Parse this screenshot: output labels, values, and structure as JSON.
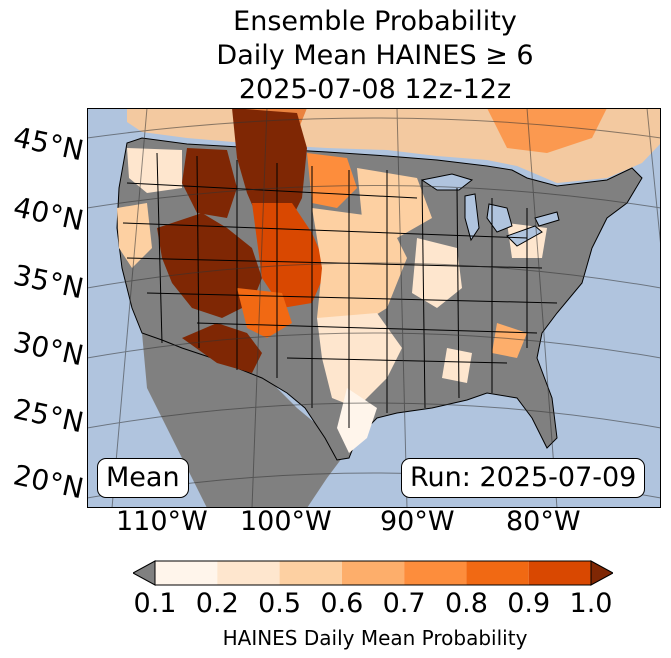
{
  "title": {
    "line1": "Ensemble Probability",
    "line2": "Daily Mean HAINES ≥ 6",
    "line3": "2025-07-08 12z-12z"
  },
  "map": {
    "latitude_labels": [
      "45°N",
      "40°N",
      "35°N",
      "30°N",
      "25°N",
      "20°N"
    ],
    "longitude_labels": [
      "110°W",
      "100°W",
      "90°W",
      "80°W"
    ],
    "mean_label": "Mean",
    "run_label": "Run: 2025-07-09",
    "colors": {
      "ocean": "#b0c4de",
      "land_below_threshold": "#808080",
      "borders": "#000000",
      "lakes": "#b0c4de"
    }
  },
  "colorbar": {
    "label": "HAINES Daily Mean Probability",
    "ticks": [
      "0.1",
      "0.2",
      "0.5",
      "0.6",
      "0.7",
      "0.8",
      "0.9",
      "1.0"
    ],
    "under_color": "#808080",
    "over_color": "#7f2704",
    "bins": [
      {
        "range": [
          0.1,
          0.2
        ],
        "color": "#fff5eb"
      },
      {
        "range": [
          0.2,
          0.5
        ],
        "color": "#fee6ce"
      },
      {
        "range": [
          0.5,
          0.6
        ],
        "color": "#fdd0a2"
      },
      {
        "range": [
          0.6,
          0.7
        ],
        "color": "#fdae6b"
      },
      {
        "range": [
          0.7,
          0.8
        ],
        "color": "#fd8d3c"
      },
      {
        "range": [
          0.8,
          0.9
        ],
        "color": "#f16913"
      },
      {
        "range": [
          0.9,
          1.0
        ],
        "color": "#d94801"
      }
    ]
  }
}
